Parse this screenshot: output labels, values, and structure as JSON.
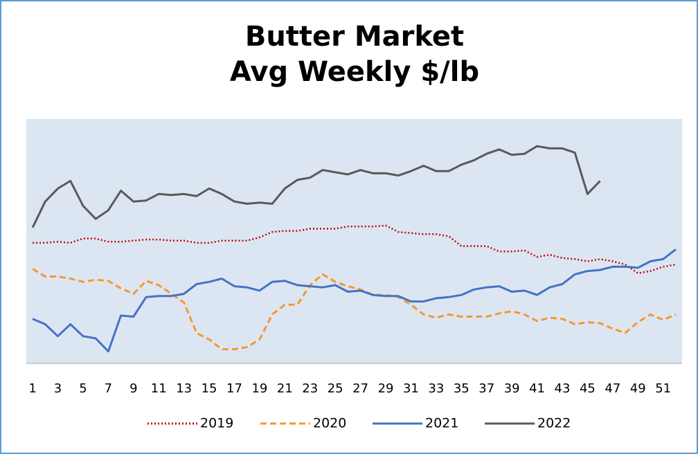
{
  "chart_data": {
    "type": "line",
    "title": [
      "Butter Market",
      "Avg Weekly $/lb"
    ],
    "categories": [
      1,
      null,
      3,
      null,
      5,
      null,
      7,
      null,
      9,
      null,
      11,
      null,
      13,
      null,
      15,
      null,
      17,
      null,
      19,
      null,
      21,
      null,
      23,
      null,
      25,
      null,
      27,
      null,
      29,
      null,
      31,
      null,
      33,
      null,
      35,
      null,
      37,
      null,
      39,
      null,
      41,
      null,
      43,
      null,
      45,
      null,
      47,
      null,
      49,
      null,
      51,
      null
    ],
    "ylim": [
      1.2,
      3.45
    ],
    "legend": "bottom",
    "series": [
      {
        "name": "2019",
        "color": "#c00000",
        "dash": "dotted",
        "values": [
          2.31,
          2.31,
          2.32,
          2.31,
          2.35,
          2.35,
          2.32,
          2.32,
          2.33,
          2.34,
          2.34,
          2.33,
          2.33,
          2.31,
          2.31,
          2.33,
          2.33,
          2.33,
          2.36,
          2.41,
          2.42,
          2.42,
          2.44,
          2.44,
          2.44,
          2.46,
          2.46,
          2.46,
          2.47,
          2.41,
          2.4,
          2.39,
          2.39,
          2.37,
          2.28,
          2.28,
          2.28,
          2.23,
          2.23,
          2.24,
          2.18,
          2.2,
          2.17,
          2.16,
          2.14,
          2.16,
          2.14,
          2.11,
          2.03,
          2.05,
          2.09,
          2.11
        ]
      },
      {
        "name": "2020",
        "color": "#f7962f",
        "dash": "dashed",
        "values": [
          2.07,
          2.0,
          2.0,
          1.98,
          1.95,
          1.97,
          1.96,
          1.89,
          1.84,
          1.96,
          1.92,
          1.84,
          1.76,
          1.48,
          1.42,
          1.33,
          1.33,
          1.35,
          1.42,
          1.65,
          1.74,
          1.74,
          1.92,
          2.02,
          1.95,
          1.91,
          1.88,
          1.83,
          1.83,
          1.81,
          1.74,
          1.65,
          1.62,
          1.65,
          1.63,
          1.63,
          1.63,
          1.66,
          1.68,
          1.65,
          1.59,
          1.62,
          1.61,
          1.56,
          1.58,
          1.57,
          1.52,
          1.48,
          1.58,
          1.65,
          1.6,
          1.65
        ]
      },
      {
        "name": "2021",
        "color": "#4472c4",
        "dash": "solid",
        "values": [
          1.61,
          1.56,
          1.45,
          1.56,
          1.45,
          1.43,
          1.31,
          1.64,
          1.63,
          1.81,
          1.82,
          1.82,
          1.84,
          1.93,
          1.95,
          1.98,
          1.91,
          1.9,
          1.87,
          1.95,
          1.96,
          1.92,
          1.91,
          1.9,
          1.92,
          1.86,
          1.87,
          1.83,
          1.82,
          1.82,
          1.77,
          1.77,
          1.8,
          1.81,
          1.83,
          1.88,
          1.9,
          1.91,
          1.86,
          1.87,
          1.83,
          1.9,
          1.93,
          2.02,
          2.05,
          2.06,
          2.09,
          2.09,
          2.08,
          2.14,
          2.16,
          2.25
        ]
      },
      {
        "name": "2022",
        "color": "#595959",
        "dash": "solid",
        "values": [
          2.45,
          2.69,
          2.81,
          2.88,
          2.65,
          2.53,
          2.61,
          2.79,
          2.69,
          2.7,
          2.76,
          2.75,
          2.76,
          2.74,
          2.81,
          2.76,
          2.69,
          2.67,
          2.68,
          2.67,
          2.81,
          2.89,
          2.91,
          2.98,
          2.96,
          2.94,
          2.98,
          2.95,
          2.95,
          2.93,
          2.97,
          3.02,
          2.97,
          2.97,
          3.03,
          3.07,
          3.13,
          3.17,
          3.12,
          3.13,
          3.2,
          3.18,
          3.18,
          3.14,
          2.76,
          2.88,
          null,
          null,
          null,
          null,
          null,
          null
        ]
      }
    ]
  }
}
